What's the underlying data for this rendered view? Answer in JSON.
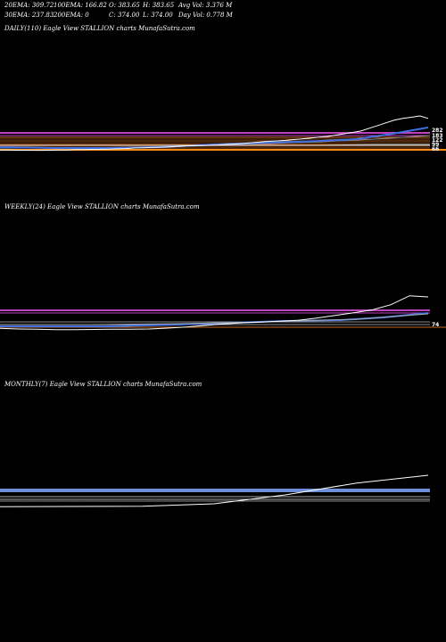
{
  "header": {
    "row1": {
      "ema20": "20EMA: 309.72",
      "ema100": "100EMA: 166.82",
      "open": "O: 383.65",
      "high": "H: 383.65",
      "avg_vol": "Avg Vol: 3.376  M"
    },
    "row2": {
      "ema30": "30EMA: 237.83",
      "ema200": "200EMA: 0",
      "close": "C: 374.00",
      "low": "L: 374.00",
      "day_vol": "Day Vol: 0.778 M"
    }
  },
  "panels": {
    "daily_label": "DAILY(110) Eagle   View  STALLION  charts MunafaSutra.com",
    "weekly_label": "WEEKLY(24) Eagle   View  STALLION  charts MunafaSutra.com",
    "monthly_label": "MONTHLY(7) Eagle   View  STALLION  charts MunafaSutra.com"
  },
  "colors": {
    "background": "#000000",
    "price": "#ffffff",
    "ema_fast": "#3f6fe0",
    "ema_slow": "#8a8a8a",
    "resistance": "#c040c0",
    "support": "#d07020",
    "monthly_band": "#6f8fd8"
  },
  "chart_data": [
    {
      "type": "line",
      "title": "DAILY(110)",
      "ylabels": [
        "282",
        "183",
        "122",
        "99",
        "66"
      ],
      "series": [
        {
          "values": [
            52,
            51,
            50,
            50,
            49,
            49,
            50,
            51,
            52,
            54,
            55,
            56,
            57,
            58,
            60,
            62,
            66,
            68,
            70,
            72,
            74,
            78,
            80,
            82,
            84,
            86,
            88,
            92,
            95,
            99,
            105,
            110,
            115,
            118,
            122,
            128,
            133,
            138,
            145,
            150,
            160,
            170,
            180,
            190,
            210,
            230,
            250,
            270,
            282,
            290,
            300,
            282
          ]
        }
      ]
    },
    {
      "type": "line",
      "title": "WEEKLY(24)",
      "ylabels": [
        "74"
      ],
      "series": [
        {
          "values": [
            70,
            66,
            64,
            62,
            62,
            63,
            64,
            65,
            66,
            72,
            80,
            90,
            100,
            108,
            112,
            118,
            124,
            140,
            158,
            175,
            195,
            230,
            290,
            282
          ]
        }
      ]
    },
    {
      "type": "line",
      "title": "MONTHLY(7)",
      "series": [
        {
          "values": [
            70,
            72,
            74,
            90,
            150,
            230,
            282
          ]
        }
      ]
    }
  ]
}
